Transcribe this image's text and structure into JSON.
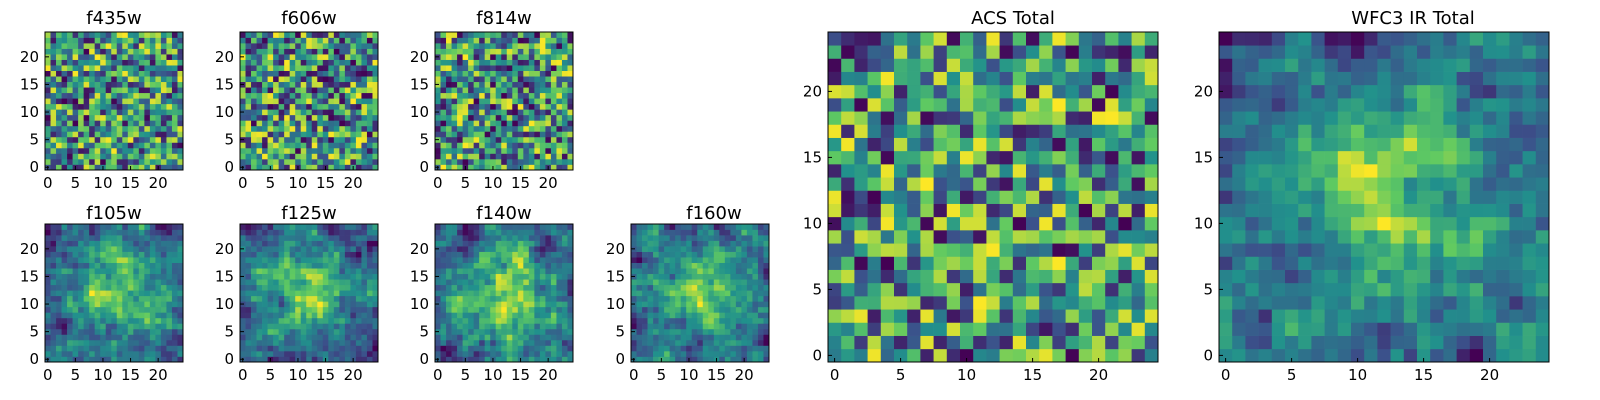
{
  "figure": {
    "panels": [
      {
        "title": "f435w",
        "size": 25,
        "seed": 1,
        "smooth": 0,
        "ticks": [
          0,
          5,
          10,
          15,
          20
        ]
      },
      {
        "title": "f606w",
        "size": 25,
        "seed": 2,
        "smooth": 0,
        "ticks": [
          0,
          5,
          10,
          15,
          20
        ]
      },
      {
        "title": "f814w",
        "size": 25,
        "seed": 3,
        "smooth": 0,
        "ticks": [
          0,
          5,
          10,
          15,
          20
        ]
      },
      {
        "title": "f105w",
        "size": 25,
        "seed": 4,
        "smooth": 1,
        "ticks": [
          0,
          5,
          10,
          15,
          20
        ]
      },
      {
        "title": "f125w",
        "size": 25,
        "seed": 5,
        "smooth": 1,
        "ticks": [
          0,
          5,
          10,
          15,
          20
        ]
      },
      {
        "title": "f140w",
        "size": 25,
        "seed": 6,
        "smooth": 1,
        "ticks": [
          0,
          5,
          10,
          15,
          20
        ]
      },
      {
        "title": "f160w",
        "size": 25,
        "seed": 7,
        "smooth": 1,
        "ticks": [
          0,
          5,
          10,
          15,
          20
        ]
      },
      {
        "title": "ACS Total",
        "size": 25,
        "seed": 8,
        "smooth": 0,
        "ticks": [
          0,
          5,
          10,
          15,
          20
        ]
      },
      {
        "title": "WFC3 IR Total",
        "size": 25,
        "seed": 9,
        "smooth": 1,
        "ticks": [
          0,
          5,
          10,
          15,
          20
        ]
      }
    ],
    "colormap": [
      "#440154",
      "#3b528b",
      "#21918c",
      "#5ec962",
      "#fde725"
    ]
  },
  "chart_data": [
    {
      "type": "heatmap",
      "title": "f435w",
      "xlim": [
        0,
        24
      ],
      "ylim": [
        0,
        24
      ],
      "xticks": [
        "0",
        "5",
        "10",
        "15",
        "20"
      ],
      "yticks": [
        "0",
        "5",
        "10",
        "15",
        "20"
      ]
    },
    {
      "type": "heatmap",
      "title": "f606w",
      "xlim": [
        0,
        24
      ],
      "ylim": [
        0,
        24
      ],
      "xticks": [
        "0",
        "5",
        "10",
        "15",
        "20"
      ],
      "yticks": [
        "0",
        "5",
        "10",
        "15",
        "20"
      ]
    },
    {
      "type": "heatmap",
      "title": "f814w",
      "xlim": [
        0,
        24
      ],
      "ylim": [
        0,
        24
      ],
      "xticks": [
        "0",
        "5",
        "10",
        "15",
        "20"
      ],
      "yticks": [
        "0",
        "5",
        "10",
        "15",
        "20"
      ]
    },
    {
      "type": "heatmap",
      "title": "f105w",
      "xlim": [
        0,
        24
      ],
      "ylim": [
        0,
        24
      ],
      "xticks": [
        "0",
        "5",
        "10",
        "15",
        "20"
      ],
      "yticks": [
        "0",
        "5",
        "10",
        "15",
        "20"
      ]
    },
    {
      "type": "heatmap",
      "title": "f125w",
      "xlim": [
        0,
        24
      ],
      "ylim": [
        0,
        24
      ],
      "xticks": [
        "0",
        "5",
        "10",
        "15",
        "20"
      ],
      "yticks": [
        "0",
        "5",
        "10",
        "15",
        "20"
      ]
    },
    {
      "type": "heatmap",
      "title": "f140w",
      "xlim": [
        0,
        24
      ],
      "ylim": [
        0,
        24
      ],
      "xticks": [
        "0",
        "5",
        "10",
        "15",
        "20"
      ],
      "yticks": [
        "0",
        "5",
        "10",
        "15",
        "20"
      ]
    },
    {
      "type": "heatmap",
      "title": "f160w",
      "xlim": [
        0,
        24
      ],
      "ylim": [
        0,
        24
      ],
      "xticks": [
        "0",
        "5",
        "10",
        "15",
        "20"
      ],
      "yticks": [
        "0",
        "5",
        "10",
        "15",
        "20"
      ]
    },
    {
      "type": "heatmap",
      "title": "ACS Total",
      "xlim": [
        0,
        24
      ],
      "ylim": [
        0,
        24
      ],
      "xticks": [
        "0",
        "5",
        "10",
        "15",
        "20"
      ],
      "yticks": [
        "0",
        "5",
        "10",
        "15",
        "20"
      ]
    },
    {
      "type": "heatmap",
      "title": "WFC3 IR Total",
      "xlim": [
        0,
        24
      ],
      "ylim": [
        0,
        24
      ],
      "xticks": [
        "0",
        "5",
        "10",
        "15",
        "20"
      ],
      "yticks": [
        "0",
        "5",
        "10",
        "15",
        "20"
      ]
    }
  ]
}
